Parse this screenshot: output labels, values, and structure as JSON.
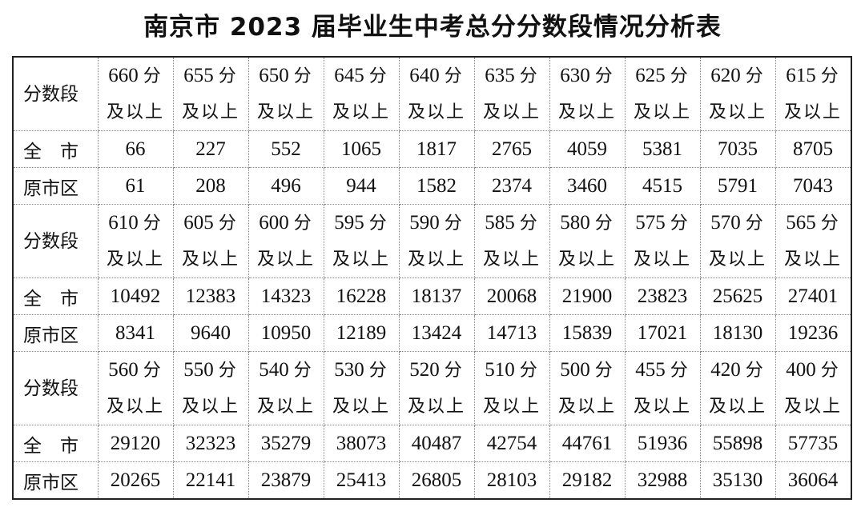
{
  "title": "南京市 2023 届毕业生中考总分分数段情况分析表",
  "labels": {
    "segment": "分数段",
    "city": "全　市",
    "urban": "原市区",
    "unit": "分",
    "suffix": "及以上"
  },
  "blocks": [
    {
      "scores": [
        "660",
        "655",
        "650",
        "645",
        "640",
        "635",
        "630",
        "625",
        "620",
        "615"
      ],
      "city": [
        "66",
        "227",
        "552",
        "1065",
        "1817",
        "2765",
        "4059",
        "5381",
        "7035",
        "8705"
      ],
      "urban": [
        "61",
        "208",
        "496",
        "944",
        "1582",
        "2374",
        "3460",
        "4515",
        "5791",
        "7043"
      ]
    },
    {
      "scores": [
        "610",
        "605",
        "600",
        "595",
        "590",
        "585",
        "580",
        "575",
        "570",
        "565"
      ],
      "city": [
        "10492",
        "12383",
        "14323",
        "16228",
        "18137",
        "20068",
        "21900",
        "23823",
        "25625",
        "27401"
      ],
      "urban": [
        "8341",
        "9640",
        "10950",
        "12189",
        "13424",
        "14713",
        "15839",
        "17021",
        "18130",
        "19236"
      ]
    },
    {
      "scores": [
        "560",
        "550",
        "540",
        "530",
        "520",
        "510",
        "500",
        "455",
        "420",
        "400"
      ],
      "city": [
        "29120",
        "32323",
        "35279",
        "38073",
        "40487",
        "42754",
        "44761",
        "51936",
        "55898",
        "57735"
      ],
      "urban": [
        "20265",
        "22141",
        "23879",
        "25413",
        "26805",
        "28103",
        "29182",
        "32988",
        "35130",
        "36064"
      ]
    }
  ]
}
